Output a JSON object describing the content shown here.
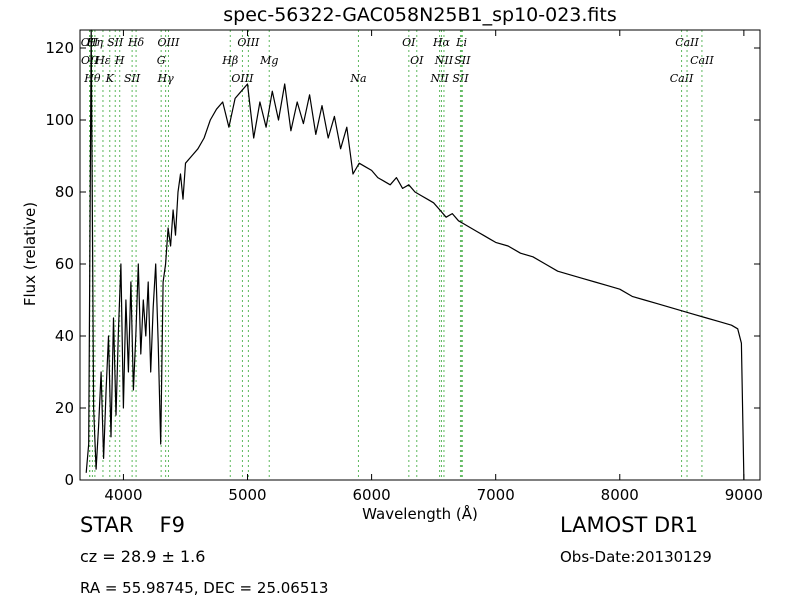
{
  "chart_data": {
    "type": "line",
    "title": "spec-56322-GAC058N25B1_sp10-023.fits",
    "xlabel": "Wavelength (Å)",
    "ylabel": "Flux (relative)",
    "xlim": [
      3650,
      9130
    ],
    "ylim": [
      0,
      125
    ],
    "xticks": [
      4000,
      5000,
      6000,
      7000,
      8000,
      9000
    ],
    "yticks": [
      0,
      20,
      40,
      60,
      80,
      100,
      120
    ],
    "grid": false,
    "series": [
      {
        "color": "#000000",
        "x": [
          3700,
          3720,
          3740,
          3760,
          3780,
          3800,
          3820,
          3840,
          3860,
          3880,
          3900,
          3920,
          3940,
          3960,
          3980,
          4000,
          4020,
          4040,
          4060,
          4080,
          4100,
          4120,
          4140,
          4160,
          4180,
          4200,
          4220,
          4240,
          4260,
          4280,
          4300,
          4320,
          4340,
          4360,
          4380,
          4400,
          4420,
          4440,
          4460,
          4480,
          4500,
          4550,
          4600,
          4650,
          4700,
          4750,
          4800,
          4850,
          4900,
          4950,
          5000,
          5050,
          5100,
          5150,
          5200,
          5250,
          5300,
          5350,
          5400,
          5450,
          5500,
          5550,
          5600,
          5650,
          5700,
          5750,
          5800,
          5850,
          5900,
          5950,
          6000,
          6050,
          6100,
          6150,
          6200,
          6250,
          6300,
          6350,
          6400,
          6450,
          6500,
          6550,
          6600,
          6650,
          6700,
          6750,
          6800,
          6850,
          6900,
          6950,
          7000,
          7100,
          7200,
          7300,
          7400,
          7500,
          7600,
          7700,
          7800,
          7900,
          8000,
          8100,
          8200,
          8300,
          8400,
          8500,
          8600,
          8700,
          8800,
          8900,
          8950,
          8980,
          9000
        ],
        "y": [
          2,
          10,
          125,
          20,
          3,
          15,
          30,
          6,
          25,
          40,
          12,
          45,
          18,
          42,
          60,
          20,
          50,
          30,
          55,
          25,
          40,
          60,
          35,
          50,
          40,
          55,
          30,
          48,
          60,
          38,
          10,
          55,
          60,
          70,
          65,
          75,
          68,
          80,
          85,
          78,
          88,
          90,
          92,
          95,
          100,
          103,
          105,
          98,
          106,
          108,
          110,
          95,
          105,
          98,
          108,
          100,
          110,
          97,
          105,
          99,
          107,
          96,
          104,
          95,
          101,
          92,
          98,
          85,
          88,
          87,
          86,
          84,
          83,
          82,
          84,
          81,
          82,
          80,
          79,
          78,
          77,
          75,
          73,
          74,
          72,
          71,
          70,
          69,
          68,
          67,
          66,
          65,
          63,
          62,
          60,
          58,
          57,
          56,
          55,
          54,
          53,
          51,
          50,
          49,
          48,
          47,
          46,
          45,
          44,
          43,
          42,
          38,
          0
        ]
      }
    ],
    "line_marks": [
      {
        "x": 3727,
        "labels": [
          "OII"
        ]
      },
      {
        "x": 3729,
        "labels": [
          "OII"
        ]
      },
      {
        "x": 3750,
        "labels": [
          "Hθ"
        ]
      },
      {
        "x": 3770,
        "labels": [
          "Hη"
        ]
      },
      {
        "x": 3835,
        "labels": [
          "Hε"
        ]
      },
      {
        "x": 3890,
        "labels": [
          "K"
        ]
      },
      {
        "x": 3934,
        "labels": [
          "SII"
        ]
      },
      {
        "x": 3970,
        "labels": [
          "H"
        ]
      },
      {
        "x": 4070,
        "labels": [
          "SII"
        ]
      },
      {
        "x": 4102,
        "labels": [
          "Hδ"
        ]
      },
      {
        "x": 4304,
        "labels": [
          "G"
        ]
      },
      {
        "x": 4340,
        "labels": [
          "Hγ"
        ]
      },
      {
        "x": 4363,
        "labels": [
          "OIII"
        ]
      },
      {
        "x": 4861,
        "labels": [
          "Hβ"
        ]
      },
      {
        "x": 4959,
        "labels": [
          "OIII"
        ]
      },
      {
        "x": 5007,
        "labels": [
          "OIII"
        ]
      },
      {
        "x": 5175,
        "labels": [
          "Mg"
        ]
      },
      {
        "x": 5894,
        "labels": [
          "Na"
        ]
      },
      {
        "x": 6300,
        "labels": [
          "OI"
        ]
      },
      {
        "x": 6364,
        "labels": [
          "OI"
        ]
      },
      {
        "x": 6548,
        "labels": [
          "NII"
        ]
      },
      {
        "x": 6563,
        "labels": [
          "Hα"
        ]
      },
      {
        "x": 6583,
        "labels": [
          "NII"
        ]
      },
      {
        "x": 6716,
        "labels": [
          "SII"
        ]
      },
      {
        "x": 6725,
        "labels": [
          "Li"
        ]
      },
      {
        "x": 6731,
        "labels": [
          "SII"
        ]
      },
      {
        "x": 8498,
        "labels": [
          "CaII"
        ]
      },
      {
        "x": 8542,
        "labels": [
          "CaII"
        ]
      },
      {
        "x": 8662,
        "labels": [
          "CaII"
        ]
      }
    ]
  },
  "info": {
    "object_type": "STAR",
    "subclass": "F9",
    "cz_text": "cz = 28.9  ± 1.6",
    "coords_text": "RA = 55.98745, DEC = 25.06513",
    "survey": "LAMOST DR1",
    "obs_date": "Obs-Date:20130129"
  }
}
